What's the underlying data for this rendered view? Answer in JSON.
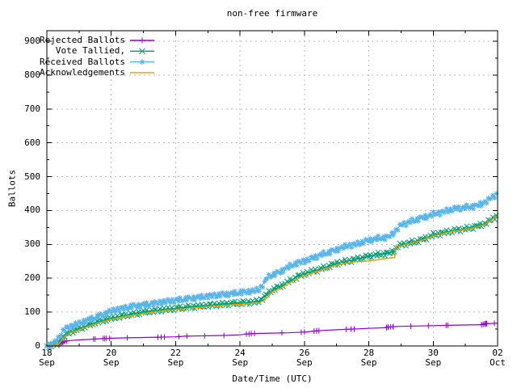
{
  "title": "non-free firmware",
  "chart_data": {
    "type": "line",
    "title": "non-free firmware",
    "xlabel": "Date/Time (UTC)",
    "ylabel": "Ballots",
    "grid": true,
    "legend_position": "inside top-left",
    "x_unit": "days since 18 Sep 00:00 (UTC)",
    "xlim": [
      0,
      14
    ],
    "ylim": [
      0,
      931
    ],
    "yticks": [
      [
        0,
        "0"
      ],
      [
        100,
        "100"
      ],
      [
        200,
        "200"
      ],
      [
        300,
        "300"
      ],
      [
        400,
        "400"
      ],
      [
        500,
        "500"
      ],
      [
        600,
        "600"
      ],
      [
        700,
        "700"
      ],
      [
        800,
        "800"
      ],
      [
        900,
        "900"
      ]
    ],
    "yticks_minor": [
      50,
      150,
      250,
      350,
      450,
      550,
      650,
      750,
      850
    ],
    "xticks": [
      [
        0,
        "18",
        "Sep"
      ],
      [
        2,
        "20",
        "Sep"
      ],
      [
        4,
        "22",
        "Sep"
      ],
      [
        6,
        "24",
        "Sep"
      ],
      [
        8,
        "26",
        "Sep"
      ],
      [
        10,
        "28",
        "Sep"
      ],
      [
        12,
        "30",
        "Sep"
      ],
      [
        14,
        "02",
        "Oct"
      ]
    ],
    "xticks_minor": [
      1,
      3,
      5,
      7,
      9,
      11,
      13
    ],
    "grid_color": "#b9b9b9",
    "border_color": "#000000",
    "series": [
      {
        "name": "Rejected Ballots",
        "color": "#9400d3",
        "marker": "plus",
        "points": [
          [
            0.35,
            2
          ],
          [
            0.45,
            8
          ],
          [
            0.55,
            14
          ],
          [
            0.7,
            16
          ],
          [
            1,
            18
          ],
          [
            1.4,
            20
          ],
          [
            1.8,
            22
          ],
          [
            2,
            23
          ],
          [
            2.5,
            24
          ],
          [
            3,
            25
          ],
          [
            3.5,
            26
          ],
          [
            4,
            27
          ],
          [
            4.3,
            29
          ],
          [
            5,
            30
          ],
          [
            5.5,
            31
          ],
          [
            6,
            33
          ],
          [
            6.2,
            35
          ],
          [
            6.5,
            37
          ],
          [
            7,
            38
          ],
          [
            7.5,
            39
          ],
          [
            8,
            41
          ],
          [
            8.3,
            44
          ],
          [
            8.6,
            46
          ],
          [
            9,
            48
          ],
          [
            9.5,
            50
          ],
          [
            10,
            52
          ],
          [
            10.5,
            54
          ],
          [
            10.7,
            57
          ],
          [
            11,
            58
          ],
          [
            11.5,
            59
          ],
          [
            12,
            60
          ],
          [
            12.5,
            61
          ],
          [
            13,
            62
          ],
          [
            13.5,
            63
          ],
          [
            13.62,
            66
          ],
          [
            14,
            67
          ]
        ],
        "marker_days": [
          0.4,
          0.45,
          0.5,
          0.55,
          0.62,
          1.45,
          1.5,
          1.75,
          1.8,
          1.85,
          1.95,
          2.5,
          3.45,
          3.55,
          3.65,
          4.1,
          4.35,
          4.9,
          5.5,
          6.2,
          6.28,
          6.35,
          6.45,
          7.3,
          7.9,
          8.0,
          8.3,
          8.38,
          8.45,
          9.3,
          9.45,
          9.55,
          10.55,
          10.6,
          10.68,
          10.75,
          11.3,
          11.85,
          12.4,
          12.45,
          13.5,
          13.55,
          13.6,
          13.63,
          13.66,
          13.9
        ]
      },
      {
        "name": "Vote Tallied,",
        "color": "#009e73",
        "marker": "cross",
        "points": [
          [
            0,
            0
          ],
          [
            0.3,
            5
          ],
          [
            0.45,
            20
          ],
          [
            0.55,
            30
          ],
          [
            0.7,
            40
          ],
          [
            0.9,
            47
          ],
          [
            1,
            51
          ],
          [
            1.3,
            62
          ],
          [
            1.6,
            72
          ],
          [
            2,
            82
          ],
          [
            2.4,
            90
          ],
          [
            2.8,
            96
          ],
          [
            3,
            100
          ],
          [
            3.4,
            105
          ],
          [
            3.8,
            109
          ],
          [
            4,
            111
          ],
          [
            4.4,
            115
          ],
          [
            4.8,
            118
          ],
          [
            5,
            120
          ],
          [
            5.4,
            123
          ],
          [
            5.8,
            126
          ],
          [
            6,
            127
          ],
          [
            6.3,
            129
          ],
          [
            6.6,
            132
          ],
          [
            6.75,
            145
          ],
          [
            6.9,
            158
          ],
          [
            7,
            166
          ],
          [
            7.2,
            173
          ],
          [
            7.5,
            190
          ],
          [
            7.8,
            205
          ],
          [
            8,
            213
          ],
          [
            8.3,
            222
          ],
          [
            8.6,
            230
          ],
          [
            9,
            244
          ],
          [
            9.3,
            250
          ],
          [
            9.6,
            256
          ],
          [
            10,
            265
          ],
          [
            10.3,
            270
          ],
          [
            10.6,
            274
          ],
          [
            10.8,
            280
          ],
          [
            10.9,
            295
          ],
          [
            11,
            299
          ],
          [
            11.3,
            305
          ],
          [
            11.6,
            312
          ],
          [
            12,
            328
          ],
          [
            12.3,
            334
          ],
          [
            12.6,
            340
          ],
          [
            13,
            346
          ],
          [
            13.3,
            352
          ],
          [
            13.6,
            361
          ],
          [
            13.8,
            373
          ],
          [
            14,
            388
          ]
        ]
      },
      {
        "name": "Received Ballots",
        "color": "#56b4e9",
        "marker": "star",
        "points": [
          [
            0,
            0
          ],
          [
            0.15,
            4
          ],
          [
            0.3,
            14
          ],
          [
            0.42,
            32
          ],
          [
            0.5,
            44
          ],
          [
            0.6,
            52
          ],
          [
            0.8,
            60
          ],
          [
            1,
            66
          ],
          [
            1.2,
            74
          ],
          [
            1.5,
            84
          ],
          [
            1.8,
            95
          ],
          [
            2,
            103
          ],
          [
            2.3,
            110
          ],
          [
            2.6,
            116
          ],
          [
            3,
            121
          ],
          [
            3.4,
            127
          ],
          [
            3.8,
            132
          ],
          [
            4,
            135
          ],
          [
            4.4,
            140
          ],
          [
            4.8,
            144
          ],
          [
            5,
            147
          ],
          [
            5.4,
            151
          ],
          [
            5.8,
            155
          ],
          [
            6,
            158
          ],
          [
            6.3,
            161
          ],
          [
            6.6,
            166
          ],
          [
            6.7,
            180
          ],
          [
            6.85,
            202
          ],
          [
            7,
            210
          ],
          [
            7.2,
            216
          ],
          [
            7.4,
            228
          ],
          [
            7.6,
            238
          ],
          [
            7.8,
            246
          ],
          [
            8,
            250
          ],
          [
            8.2,
            257
          ],
          [
            8.4,
            265
          ],
          [
            8.6,
            272
          ],
          [
            8.8,
            278
          ],
          [
            9,
            284
          ],
          [
            9.2,
            292
          ],
          [
            9.4,
            297
          ],
          [
            9.6,
            300
          ],
          [
            9.8,
            306
          ],
          [
            10,
            312
          ],
          [
            10.3,
            318
          ],
          [
            10.6,
            322
          ],
          [
            10.8,
            336
          ],
          [
            11,
            358
          ],
          [
            11.2,
            364
          ],
          [
            11.5,
            374
          ],
          [
            11.8,
            382
          ],
          [
            12,
            389
          ],
          [
            12.3,
            396
          ],
          [
            12.6,
            404
          ],
          [
            13,
            409
          ],
          [
            13.3,
            413
          ],
          [
            13.5,
            419
          ],
          [
            13.7,
            430
          ],
          [
            13.85,
            441
          ],
          [
            14,
            452
          ]
        ]
      },
      {
        "name": "Acknowledgements",
        "color": "#e69f00",
        "marker": "none",
        "points": [
          [
            0,
            0
          ],
          [
            0.35,
            3
          ],
          [
            0.5,
            22
          ],
          [
            0.6,
            32
          ],
          [
            0.8,
            42
          ],
          [
            1,
            47
          ],
          [
            1.3,
            58
          ],
          [
            1.6,
            68
          ],
          [
            2,
            78
          ],
          [
            2.4,
            86
          ],
          [
            2.8,
            92
          ],
          [
            3,
            96
          ],
          [
            3.4,
            101
          ],
          [
            3.8,
            105
          ],
          [
            4,
            107
          ],
          [
            4.4,
            111
          ],
          [
            4.8,
            114
          ],
          [
            5,
            116
          ],
          [
            5.4,
            119
          ],
          [
            5.8,
            122
          ],
          [
            6,
            123
          ],
          [
            6.3,
            125
          ],
          [
            6.6,
            127
          ],
          [
            6.8,
            138
          ],
          [
            7,
            160
          ],
          [
            7.2,
            167
          ],
          [
            7.5,
            184
          ],
          [
            7.8,
            199
          ],
          [
            8,
            208
          ],
          [
            8.3,
            217
          ],
          [
            8.6,
            226
          ],
          [
            9,
            239
          ],
          [
            9.3,
            245
          ],
          [
            9.6,
            249
          ],
          [
            10,
            251
          ],
          [
            10.3,
            255
          ],
          [
            10.6,
            259
          ],
          [
            10.8,
            261
          ],
          [
            10.85,
            293
          ],
          [
            11,
            296
          ],
          [
            11.3,
            303
          ],
          [
            11.6,
            310
          ],
          [
            12,
            325
          ],
          [
            12.3,
            332
          ],
          [
            12.6,
            338
          ],
          [
            13,
            344
          ],
          [
            13.3,
            350
          ],
          [
            13.6,
            358
          ],
          [
            13.8,
            371
          ],
          [
            14,
            385
          ]
        ]
      }
    ]
  }
}
